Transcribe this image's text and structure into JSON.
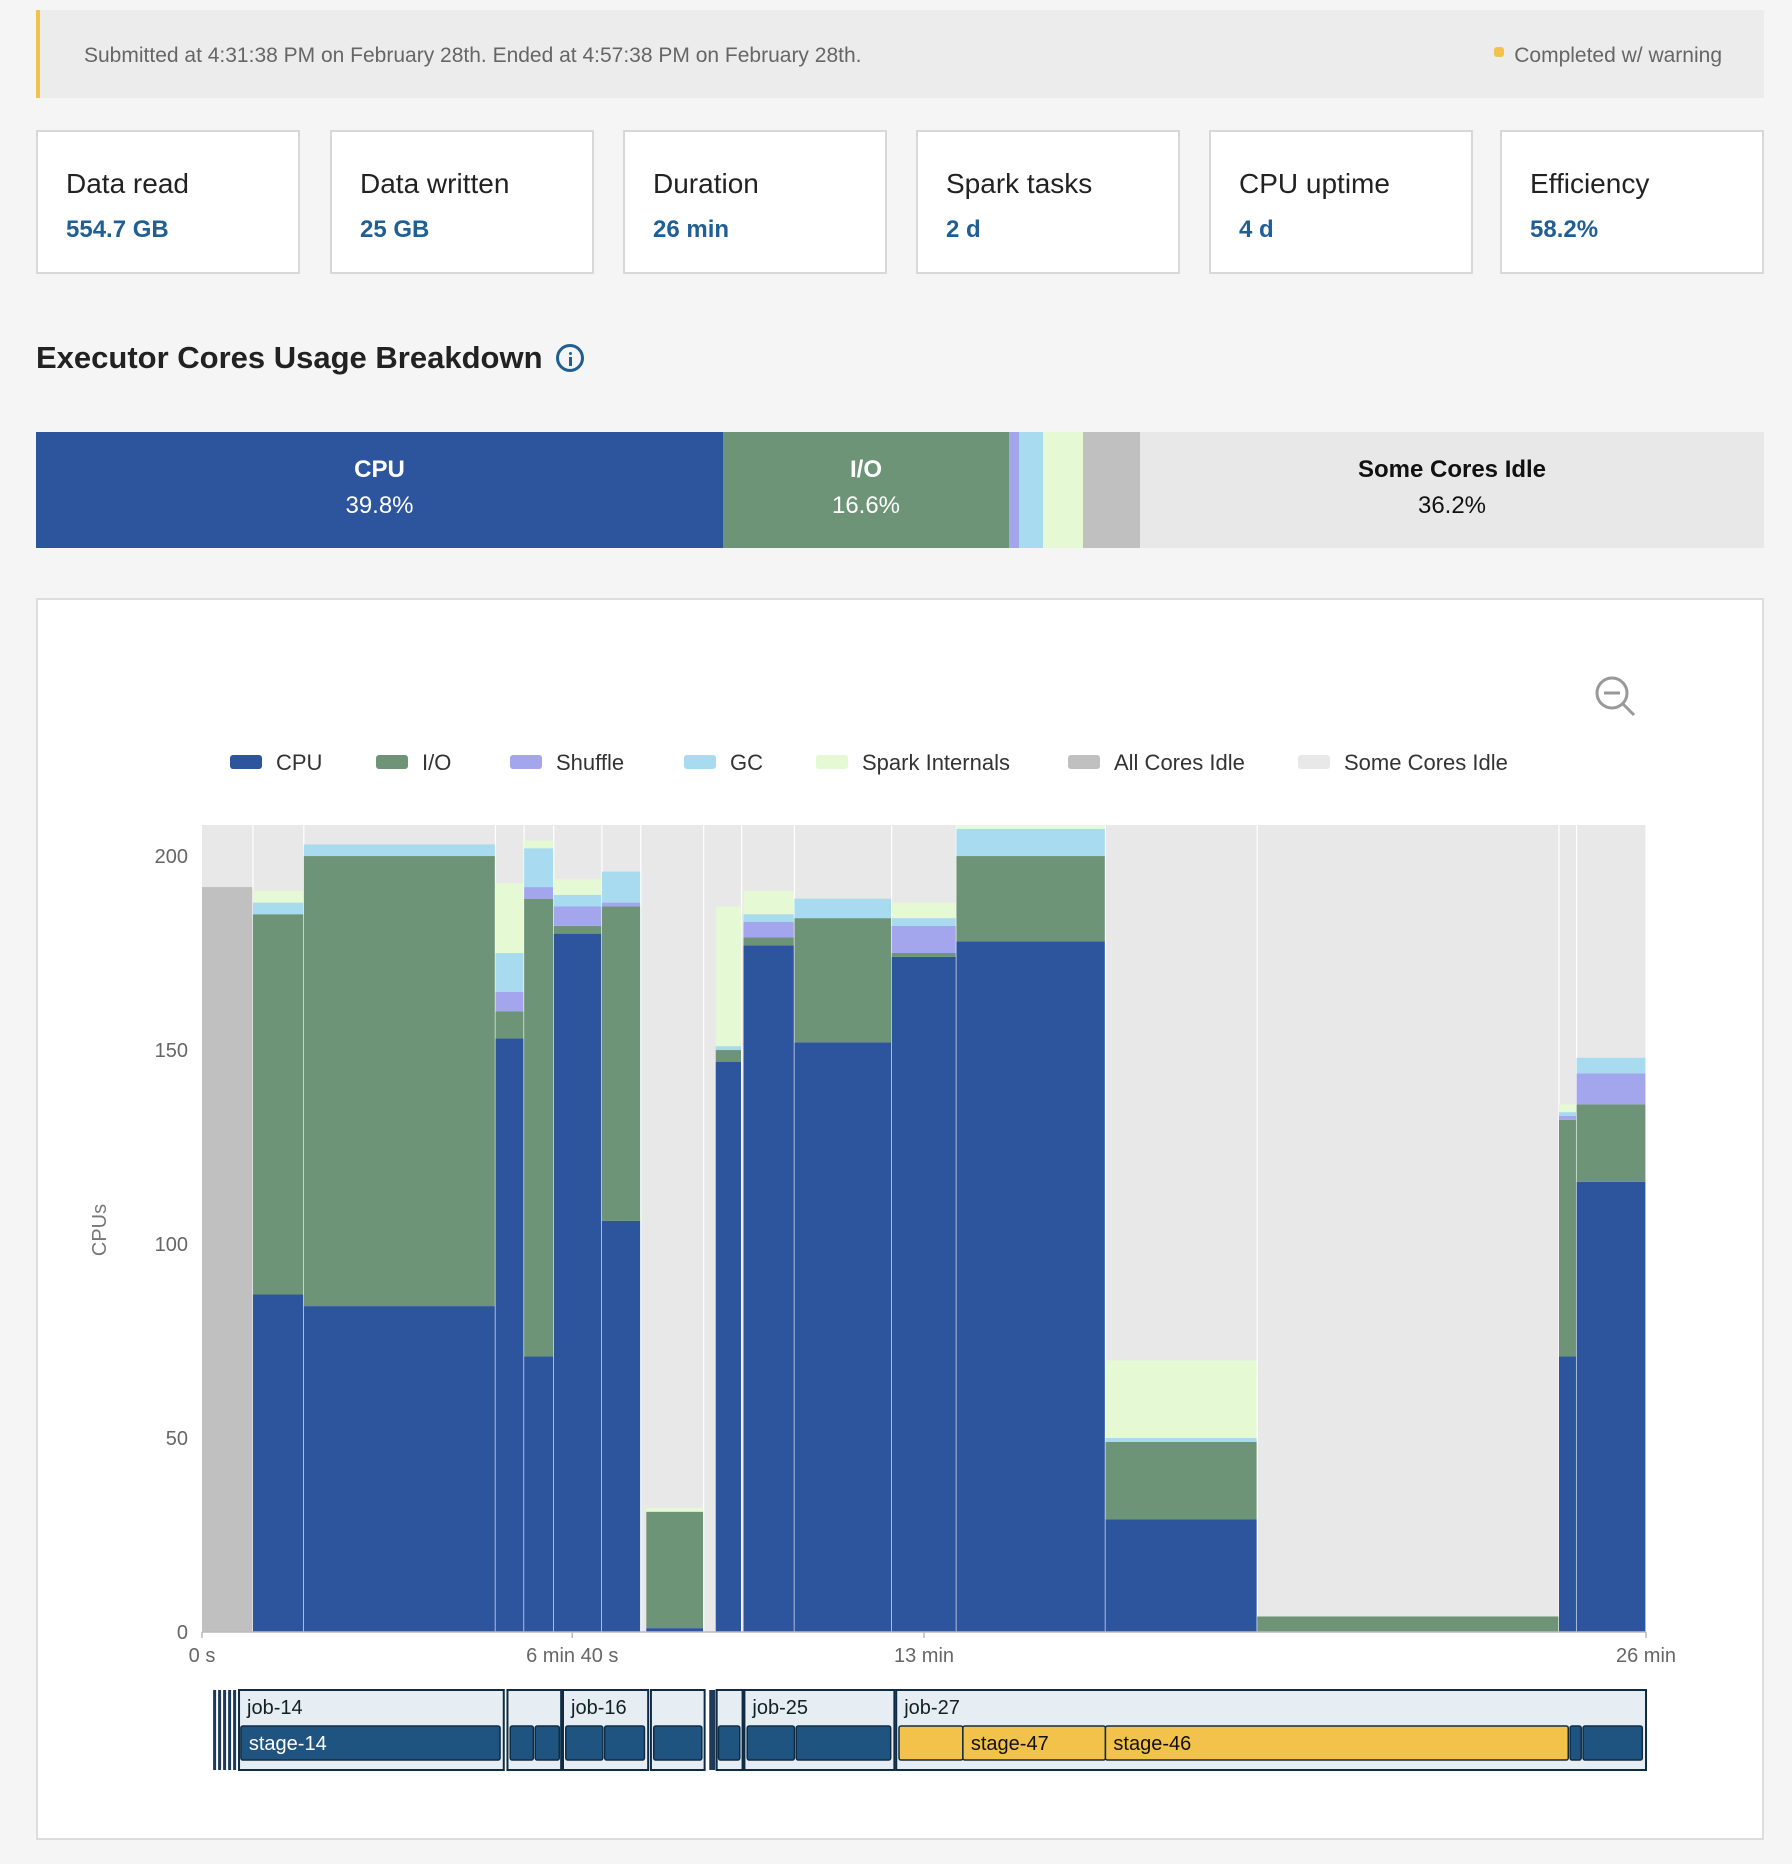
{
  "banner": {
    "submitted_text": "Submitted at 4:31:38 PM on February 28th. Ended at 4:57:38 PM on February 28th.",
    "status": "Completed w/ warning",
    "status_color": "#f2c24a"
  },
  "stats": [
    {
      "label": "Data read",
      "value": "554.7 GB"
    },
    {
      "label": "Data written",
      "value": "25 GB"
    },
    {
      "label": "Duration",
      "value": "26 min"
    },
    {
      "label": "Spark tasks",
      "value": "2 d"
    },
    {
      "label": "CPU uptime",
      "value": "4 d"
    },
    {
      "label": "Efficiency",
      "value": "58.2%"
    }
  ],
  "section_title": "Executor Cores Usage Breakdown",
  "breakdown": {
    "cpu": {
      "label": "CPU",
      "pct": "39.8%"
    },
    "io": {
      "label": "I/O",
      "pct": "16.6%"
    },
    "idle": {
      "label": "Some Cores Idle",
      "pct": "36.2%"
    }
  },
  "colors": {
    "cpu": "#2c559e",
    "io": "#6e9478",
    "shuffle": "#a3a6ed",
    "gc": "#a8daf0",
    "spark": "#e5f9d4",
    "allidle": "#c0c0c0",
    "someidle": "#e8e8e8",
    "stage_dark": "#1f5480",
    "stage_yellow": "#f2c24a"
  },
  "legend": [
    {
      "key": "cpu",
      "label": "CPU"
    },
    {
      "key": "io",
      "label": "I/O"
    },
    {
      "key": "shuffle",
      "label": "Shuffle"
    },
    {
      "key": "gc",
      "label": "GC"
    },
    {
      "key": "spark",
      "label": "Spark Internals"
    },
    {
      "key": "allidle",
      "label": "All Cores Idle"
    },
    {
      "key": "someidle",
      "label": "Some Cores Idle"
    }
  ],
  "chart_data": {
    "type": "area",
    "title": "Executor Cores Usage Breakdown",
    "ylabel": "CPUs",
    "xlabel": "",
    "x_unit": "seconds",
    "ylim": [
      0,
      208
    ],
    "xlim": [
      0,
      1560
    ],
    "yticks": [
      0,
      50,
      100,
      150,
      200
    ],
    "xticks": [
      {
        "v": 0,
        "label": "0 s"
      },
      {
        "v": 400,
        "label": "6 min 40 s"
      },
      {
        "v": 780,
        "label": "13 min"
      },
      {
        "v": 1560,
        "label": "26 min"
      }
    ],
    "segments": [
      {
        "x0": 0,
        "x1": 55,
        "cpu": 0,
        "io": 0,
        "shuffle": 0,
        "gc": 0,
        "spark": 0,
        "allidle": 192
      },
      {
        "x0": 55,
        "x1": 110,
        "cpu": 87,
        "io": 98,
        "shuffle": 0,
        "gc": 3,
        "spark": 3
      },
      {
        "x0": 110,
        "x1": 317,
        "cpu": 84,
        "io": 116,
        "shuffle": 0,
        "gc": 3,
        "spark": 0
      },
      {
        "x0": 317,
        "x1": 348,
        "cpu": 153,
        "io": 7,
        "shuffle": 5,
        "gc": 10,
        "spark": 18
      },
      {
        "x0": 348,
        "x1": 380,
        "cpu": 71,
        "io": 118,
        "shuffle": 3,
        "gc": 10,
        "spark": 2
      },
      {
        "x0": 380,
        "x1": 432,
        "cpu": 180,
        "io": 2,
        "shuffle": 5,
        "gc": 3,
        "spark": 4
      },
      {
        "x0": 432,
        "x1": 474,
        "cpu": 106,
        "io": 81,
        "shuffle": 1,
        "gc": 8,
        "spark": 0
      },
      {
        "x0": 480,
        "x1": 542,
        "cpu": 1,
        "io": 30,
        "shuffle": 0,
        "gc": 0,
        "spark": 1
      },
      {
        "x0": 555,
        "x1": 583,
        "cpu": 147,
        "io": 3,
        "shuffle": 0,
        "gc": 1,
        "spark": 36
      },
      {
        "x0": 585,
        "x1": 640,
        "cpu": 177,
        "io": 2,
        "shuffle": 4,
        "gc": 2,
        "spark": 6
      },
      {
        "x0": 640,
        "x1": 745,
        "cpu": 152,
        "io": 32,
        "shuffle": 0,
        "gc": 5,
        "spark": 0
      },
      {
        "x0": 745,
        "x1": 815,
        "cpu": 174,
        "io": 1,
        "shuffle": 7,
        "gc": 2,
        "spark": 4
      },
      {
        "x0": 815,
        "x1": 976,
        "cpu": 178,
        "io": 22,
        "shuffle": 0,
        "gc": 7,
        "spark": 1
      },
      {
        "x0": 976,
        "x1": 1140,
        "cpu": 29,
        "io": 20,
        "shuffle": 0,
        "gc": 1,
        "spark": 20
      },
      {
        "x0": 1140,
        "x1": 1466,
        "cpu": 0,
        "io": 4,
        "shuffle": 0,
        "gc": 0,
        "spark": 0
      },
      {
        "x0": 1466,
        "x1": 1485,
        "cpu": 71,
        "io": 61,
        "shuffle": 1,
        "gc": 1,
        "spark": 2
      },
      {
        "x0": 1485,
        "x1": 1560,
        "cpu": 116,
        "io": 20,
        "shuffle": 8,
        "gc": 4,
        "spark": 0
      }
    ],
    "jobs": [
      {
        "name": "job-14",
        "stage": "stage-14"
      },
      {
        "name": "job-16",
        "stage": ""
      },
      {
        "name": "job-25",
        "stage": ""
      },
      {
        "name": "job-27",
        "stage": "stage-47",
        "stage2": "stage-46"
      }
    ]
  }
}
